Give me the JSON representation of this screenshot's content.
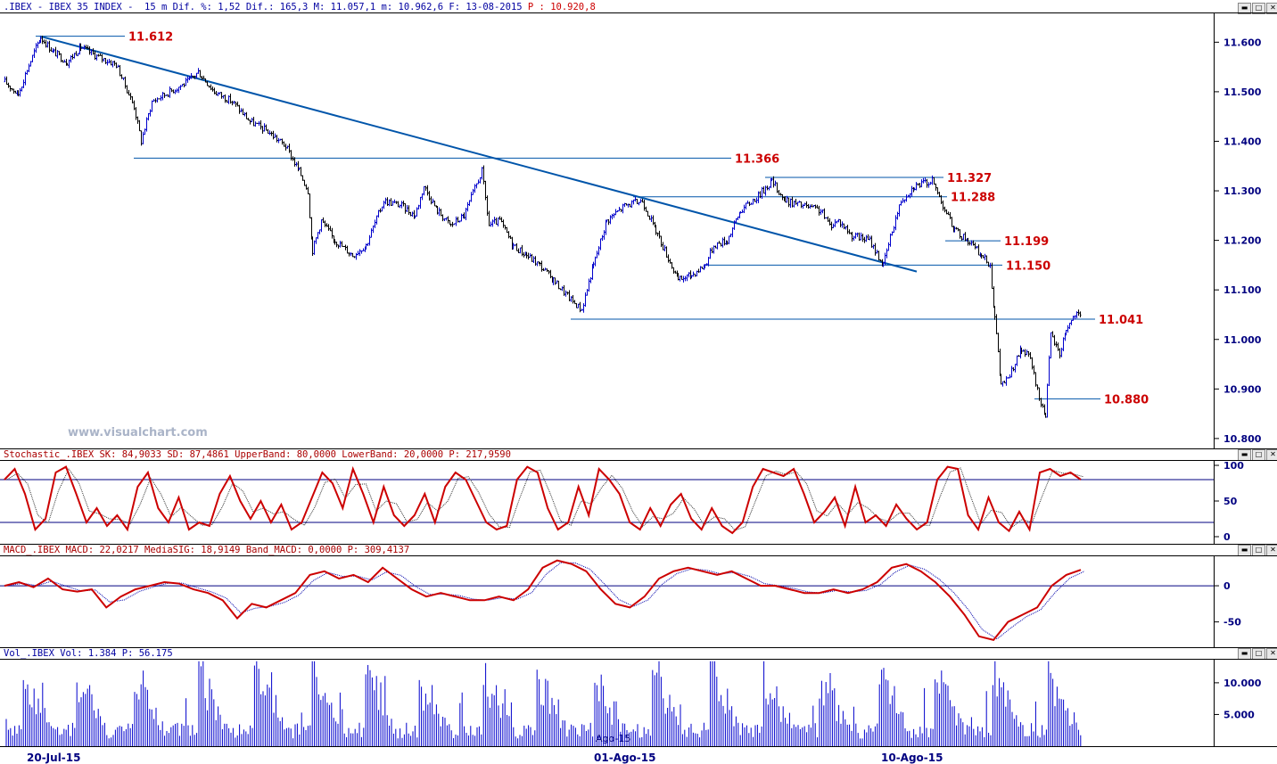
{
  "header": {
    "price": ".IBEX - IBEX 35 INDEX -  15 m Dif. %: 1,52 Dif.: 165,3 M: 11.057,1 m: 10.962,6 F: 13-08-2015",
    "price_p": " P : 10.920,8",
    "stoch": "Stochastic_.IBEX SK: 84,9033 SD: 87,4861 UpperBand: 80,0000 LowerBand: 20,0000 P: 217,9590",
    "macd": "MACD_.IBEX MACD: 22,0217 MediaSIG: 18,9149 Band_MACD: 0,0000 P: 309,4137",
    "vol": "Vol_.IBEX Vol: 1.384 P: 56.175"
  },
  "watermark": "www.visualchart.com",
  "buttons": [
    "▬",
    "□",
    "✕"
  ],
  "x_labels": [
    "20-Jul-15",
    "01-Ago-15",
    "10-Ago-15"
  ],
  "x_mid_label": "Ago-15",
  "colors": {
    "up": "#0000cc",
    "down": "#000000",
    "line": "#0055aa",
    "red": "#cc0000",
    "nav": "#000080"
  },
  "chart_data": [
    {
      "type": "candlestick",
      "title": "IBEX 35 INDEX 15 m",
      "ylim": [
        10780,
        11660
      ],
      "yticks": [
        10800,
        10900,
        11000,
        11100,
        11200,
        11300,
        11400,
        11500,
        11600
      ],
      "ytick_labels": [
        "10.800",
        "10.900",
        "11.000",
        "11.100",
        "11.200",
        "11.300",
        "11.400",
        "11.500",
        "11.600"
      ],
      "levels": [
        {
          "value": 11612,
          "label": "11.612",
          "from": 40,
          "to": 140
        },
        {
          "value": 11366,
          "label": "11.366",
          "from": 150,
          "to": 820
        },
        {
          "value": 11327,
          "label": "11.327",
          "from": 858,
          "to": 1058
        },
        {
          "value": 11288,
          "label": "11.288",
          "from": 710,
          "to": 1062
        },
        {
          "value": 11199,
          "label": "11.199",
          "from": 1060,
          "to": 1122
        },
        {
          "value": 11150,
          "label": "11.150",
          "from": 790,
          "to": 1124
        },
        {
          "value": 11041,
          "label": "11.041",
          "from": 640,
          "to": 1228
        },
        {
          "value": 10880,
          "label": "10.880",
          "from": 1160,
          "to": 1234
        }
      ],
      "trendline": {
        "from": [
          45,
          11612
        ],
        "to": [
          1028,
          11137
        ]
      },
      "path_points": [
        [
          5,
          11520
        ],
        [
          20,
          11495
        ],
        [
          30,
          11545
        ],
        [
          45,
          11610
        ],
        [
          60,
          11580
        ],
        [
          75,
          11560
        ],
        [
          90,
          11590
        ],
        [
          110,
          11570
        ],
        [
          130,
          11555
        ],
        [
          150,
          11470
        ],
        [
          158,
          11400
        ],
        [
          170,
          11480
        ],
        [
          190,
          11500
        ],
        [
          210,
          11520
        ],
        [
          222,
          11540
        ],
        [
          240,
          11500
        ],
        [
          260,
          11480
        ],
        [
          280,
          11440
        ],
        [
          300,
          11420
        ],
        [
          320,
          11390
        ],
        [
          335,
          11340
        ],
        [
          345,
          11300
        ],
        [
          350,
          11180
        ],
        [
          360,
          11240
        ],
        [
          375,
          11200
        ],
        [
          395,
          11170
        ],
        [
          410,
          11190
        ],
        [
          430,
          11280
        ],
        [
          450,
          11270
        ],
        [
          465,
          11250
        ],
        [
          475,
          11310
        ],
        [
          490,
          11260
        ],
        [
          505,
          11230
        ],
        [
          520,
          11250
        ],
        [
          540,
          11340
        ],
        [
          548,
          11230
        ],
        [
          560,
          11240
        ],
        [
          575,
          11190
        ],
        [
          590,
          11170
        ],
        [
          605,
          11150
        ],
        [
          620,
          11120
        ],
        [
          640,
          11080
        ],
        [
          652,
          11060
        ],
        [
          665,
          11150
        ],
        [
          680,
          11240
        ],
        [
          700,
          11270
        ],
        [
          720,
          11280
        ],
        [
          735,
          11220
        ],
        [
          745,
          11180
        ],
        [
          760,
          11120
        ],
        [
          775,
          11130
        ],
        [
          790,
          11150
        ],
        [
          800,
          11190
        ],
        [
          815,
          11200
        ],
        [
          830,
          11260
        ],
        [
          850,
          11290
        ],
        [
          865,
          11320
        ],
        [
          880,
          11280
        ],
        [
          900,
          11270
        ],
        [
          920,
          11260
        ],
        [
          930,
          11230
        ],
        [
          940,
          11240
        ],
        [
          955,
          11210
        ],
        [
          975,
          11200
        ],
        [
          990,
          11150
        ],
        [
          1000,
          11220
        ],
        [
          1010,
          11280
        ],
        [
          1025,
          11310
        ],
        [
          1045,
          11320
        ],
        [
          1055,
          11280
        ],
        [
          1070,
          11220
        ],
        [
          1085,
          11200
        ],
        [
          1100,
          11170
        ],
        [
          1110,
          11150
        ],
        [
          1115,
          11050
        ],
        [
          1122,
          10910
        ],
        [
          1130,
          10920
        ],
        [
          1145,
          10980
        ],
        [
          1155,
          10960
        ],
        [
          1165,
          10880
        ],
        [
          1172,
          10850
        ],
        [
          1178,
          11010
        ],
        [
          1188,
          10970
        ],
        [
          1195,
          11020
        ],
        [
          1205,
          11050
        ],
        [
          1212,
          11045
        ]
      ]
    },
    {
      "type": "line",
      "title": "Stochastic_.IBEX",
      "ylim": [
        0,
        100
      ],
      "yticks": [
        0,
        50,
        100
      ],
      "ytick_labels": [
        "0",
        "50",
        "100"
      ],
      "bands": [
        20,
        80
      ],
      "sk": [
        80,
        95,
        60,
        10,
        25,
        90,
        98,
        60,
        20,
        40,
        15,
        30,
        10,
        70,
        90,
        40,
        20,
        55,
        10,
        20,
        15,
        60,
        85,
        50,
        25,
        50,
        20,
        45,
        10,
        20,
        55,
        90,
        75,
        40,
        95,
        60,
        20,
        70,
        30,
        15,
        30,
        60,
        20,
        70,
        90,
        80,
        50,
        20,
        10,
        15,
        80,
        98,
        90,
        40,
        10,
        20,
        70,
        30,
        95,
        80,
        60,
        20,
        10,
        40,
        15,
        45,
        60,
        25,
        10,
        40,
        15,
        5,
        20,
        70,
        95,
        90,
        85,
        95,
        60,
        20,
        35,
        55,
        15,
        70,
        20,
        30,
        15,
        45,
        25,
        10,
        20,
        80,
        98,
        95,
        30,
        10,
        55,
        20,
        8,
        35,
        10,
        90,
        95,
        85,
        90,
        80
      ]
    },
    {
      "type": "line",
      "title": "MACD_.IBEX",
      "ylim": [
        -85,
        42
      ],
      "yticks": [
        -50,
        0
      ],
      "ytick_labels": [
        "-50",
        "0"
      ],
      "band": 0,
      "macd": [
        0,
        5,
        -2,
        10,
        -5,
        -8,
        -5,
        -30,
        -15,
        -5,
        0,
        5,
        3,
        -5,
        -10,
        -20,
        -45,
        -25,
        -30,
        -20,
        -10,
        15,
        20,
        10,
        15,
        5,
        25,
        10,
        -5,
        -15,
        -10,
        -15,
        -20,
        -20,
        -15,
        -20,
        -5,
        25,
        35,
        30,
        20,
        -5,
        -25,
        -30,
        -15,
        10,
        20,
        25,
        20,
        15,
        20,
        10,
        0,
        0,
        -5,
        -10,
        -10,
        -5,
        -10,
        -5,
        5,
        25,
        30,
        20,
        5,
        -15,
        -40,
        -70,
        -75,
        -50,
        -40,
        -30,
        0,
        15,
        22
      ]
    },
    {
      "type": "bar",
      "title": "Vol_.IBEX",
      "ylim": [
        0,
        13500
      ],
      "yticks": [
        5000,
        10000
      ],
      "ytick_labels": [
        "5.000",
        "10.000"
      ]
    }
  ]
}
